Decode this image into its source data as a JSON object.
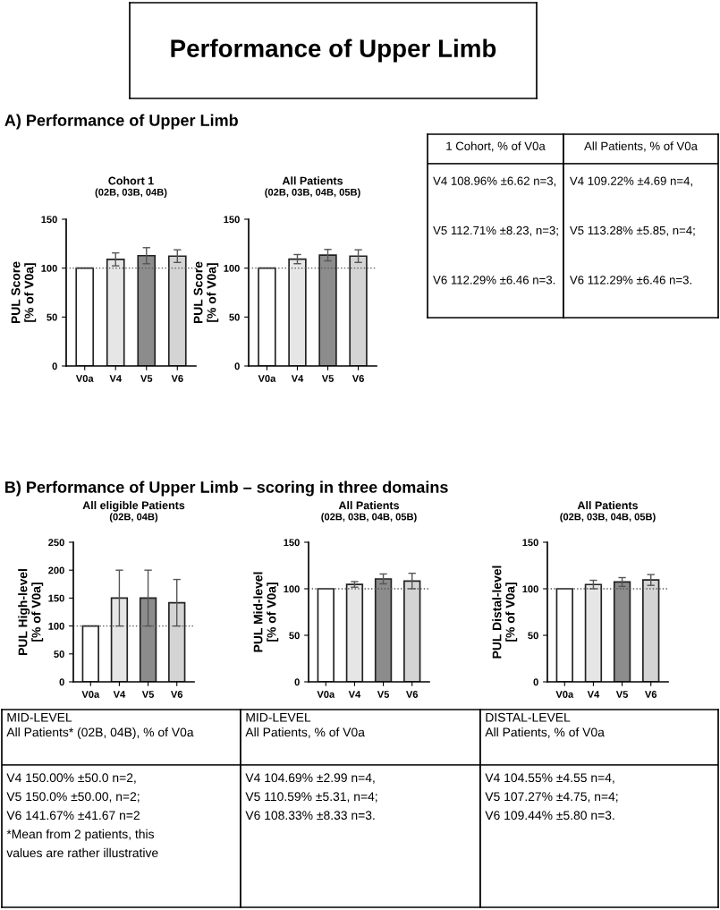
{
  "chart_data": [
    {
      "type": "other",
      "title": "Performance of Upper Limb"
    },
    {
      "type": "other",
      "annotations": [
        "A) Performance of Upper Limb"
      ]
    },
    {
      "type": "bar",
      "title": "Cohort 1",
      "subtitle": "(02B, 03B, 04B)",
      "ylabel": "PUL Score\n[% of V0a]",
      "categories": [
        "V0a",
        "V4",
        "V5",
        "V6"
      ],
      "values": [
        100,
        108.96,
        112.71,
        112.29
      ],
      "errors": [
        null,
        6.62,
        8.23,
        6.46
      ],
      "colors": [
        "#ffffff",
        "#e6e6e6",
        "#8c8c8c",
        "#d4d4d4"
      ],
      "ylim": [
        0,
        150
      ],
      "yticks": [
        0,
        50,
        100,
        150
      ],
      "ref_lines": [
        {
          "axis": "y",
          "value": 100,
          "line_style": "dotted",
          "color": "#555555"
        }
      ]
    },
    {
      "type": "bar",
      "title": "All Patients",
      "subtitle": "(02B, 03B, 04B, 05B)",
      "ylabel": "PUL Score\n[% of V0a]",
      "categories": [
        "V0a",
        "V4",
        "V5",
        "V6"
      ],
      "values": [
        100,
        109.22,
        113.28,
        112.29
      ],
      "errors": [
        null,
        4.69,
        5.85,
        6.46
      ],
      "colors": [
        "#ffffff",
        "#e6e6e6",
        "#8c8c8c",
        "#d4d4d4"
      ],
      "ylim": [
        0,
        150
      ],
      "yticks": [
        0,
        50,
        100,
        150
      ],
      "ref_lines": [
        {
          "axis": "y",
          "value": 100,
          "line_style": "dotted",
          "color": "#555555"
        }
      ]
    },
    {
      "type": "other",
      "title": "1 Cohort, % of V0a",
      "annotations": [
        "V4 108.96% ±6.62 n=3,",
        "V5 112.71% ±8.23, n=3;",
        "V6 112.29% ±6.46 n=3."
      ]
    },
    {
      "type": "other",
      "title": "All Patients, % of V0a",
      "annotations": [
        "V4 109.22% ±4.69 n=4,",
        "V5 113.28% ±5.85, n=4;",
        "V6 112.29% ±6.46 n=3."
      ]
    },
    {
      "type": "other",
      "annotations": [
        "B) Performance of Upper Limb – scoring in three domains"
      ]
    },
    {
      "type": "bar",
      "title": "All eligible Patients",
      "subtitle": "(02B, 04B)",
      "ylabel": "PUL High-level\n[% of V0a]",
      "categories": [
        "V0a",
        "V4",
        "V5",
        "V6"
      ],
      "values": [
        100,
        150.0,
        150.0,
        141.67
      ],
      "errors": [
        null,
        50.0,
        50.0,
        41.67
      ],
      "colors": [
        "#ffffff",
        "#e6e6e6",
        "#8c8c8c",
        "#d4d4d4"
      ],
      "ylim": [
        0,
        250
      ],
      "yticks": [
        0,
        50,
        100,
        150,
        200,
        250
      ],
      "ref_lines": [
        {
          "axis": "y",
          "value": 100,
          "line_style": "dotted",
          "color": "#555555"
        }
      ]
    },
    {
      "type": "bar",
      "title": "All Patients",
      "subtitle": "(02B, 03B, 04B, 05B)",
      "ylabel": "PUL Mid-level\n[% of V0a]",
      "categories": [
        "V0a",
        "V4",
        "V5",
        "V6"
      ],
      "values": [
        100,
        104.69,
        110.59,
        108.33
      ],
      "errors": [
        null,
        2.99,
        5.31,
        8.33
      ],
      "colors": [
        "#ffffff",
        "#e6e6e6",
        "#8c8c8c",
        "#d4d4d4"
      ],
      "ylim": [
        0,
        150
      ],
      "yticks": [
        0,
        50,
        100,
        150
      ],
      "ref_lines": [
        {
          "axis": "y",
          "value": 100,
          "line_style": "dotted",
          "color": "#555555"
        }
      ]
    },
    {
      "type": "bar",
      "title": "All Patients",
      "subtitle": "(02B, 03B, 04B, 05B)",
      "ylabel": "PUL Distal-level\n[% of V0a]",
      "categories": [
        "V0a",
        "V4",
        "V5",
        "V6"
      ],
      "values": [
        100,
        104.55,
        107.27,
        109.44
      ],
      "errors": [
        null,
        4.55,
        4.75,
        5.8
      ],
      "colors": [
        "#ffffff",
        "#e6e6e6",
        "#8c8c8c",
        "#d4d4d4"
      ],
      "ylim": [
        0,
        150
      ],
      "yticks": [
        0,
        50,
        100,
        150
      ],
      "ref_lines": [
        {
          "axis": "y",
          "value": 100,
          "line_style": "dotted",
          "color": "#555555"
        }
      ]
    },
    {
      "type": "other",
      "title": "MID-LEVEL",
      "subtitle": "All Patients* (02B, 04B), % of V0a",
      "annotations": [
        "V4 150.00% ±50.0 n=2,",
        "V5 150.0% ±50.00, n=2;",
        "V6 141.67% ±41.67 n=2",
        "*Mean from 2 patients, this",
        "values are rather illustrative"
      ]
    },
    {
      "type": "other",
      "title": "MID-LEVEL",
      "subtitle": "All Patients, % of V0a",
      "annotations": [
        "V4 104.69% ±2.99 n=4,",
        "V5 110.59% ±5.31, n=4;",
        "V6 108.33% ±8.33 n=3."
      ]
    },
    {
      "type": "other",
      "title": "DISTAL-LEVEL",
      "subtitle": "All Patients, % of V0a",
      "annotations": [
        "V4 104.55% ±4.55 n=4,",
        "V5 107.27% ±4.75, n=4;",
        "V6 109.44% ±5.80 n=3."
      ]
    }
  ]
}
